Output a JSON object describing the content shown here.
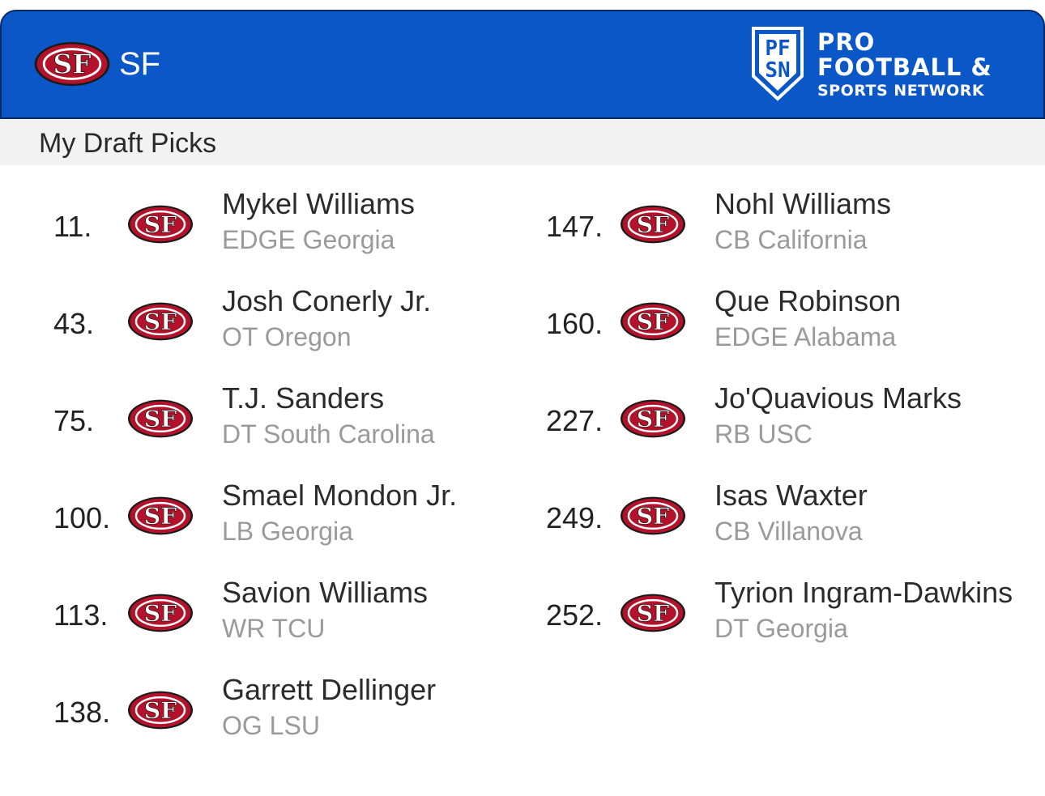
{
  "header": {
    "team_abbr": "SF",
    "brand": {
      "mark_top": "PF",
      "mark_bottom": "SN",
      "line1": "PRO",
      "line2": "FOOTBALL &",
      "line3": "SPORTS NETWORK"
    }
  },
  "section_title": "My Draft Picks",
  "colors": {
    "header_blue": "#0b57c8",
    "niners_red": "#b3122a",
    "niners_gold": "#c9a55a"
  },
  "icons": {
    "team_logo": "49ers-sf-oval-logo",
    "brand_logo": "pfsn-shield-logo"
  },
  "picks_left": [
    {
      "number": "11.",
      "name": "Mykel Williams",
      "detail": "EDGE Georgia"
    },
    {
      "number": "43.",
      "name": "Josh Conerly Jr.",
      "detail": "OT Oregon"
    },
    {
      "number": "75.",
      "name": "T.J. Sanders",
      "detail": "DT South Carolina"
    },
    {
      "number": "100.",
      "name": "Smael Mondon Jr.",
      "detail": "LB Georgia"
    },
    {
      "number": "113.",
      "name": "Savion Williams",
      "detail": "WR TCU"
    },
    {
      "number": "138.",
      "name": "Garrett Dellinger",
      "detail": "OG LSU"
    }
  ],
  "picks_right": [
    {
      "number": "147.",
      "name": "Nohl Williams",
      "detail": "CB California"
    },
    {
      "number": "160.",
      "name": "Que Robinson",
      "detail": "EDGE Alabama"
    },
    {
      "number": "227.",
      "name": "Jo'Quavious Marks",
      "detail": "RB USC"
    },
    {
      "number": "249.",
      "name": "Isas Waxter",
      "detail": "CB Villanova"
    },
    {
      "number": "252.",
      "name": "Tyrion Ingram-Dawkins",
      "detail": "DT Georgia"
    }
  ]
}
